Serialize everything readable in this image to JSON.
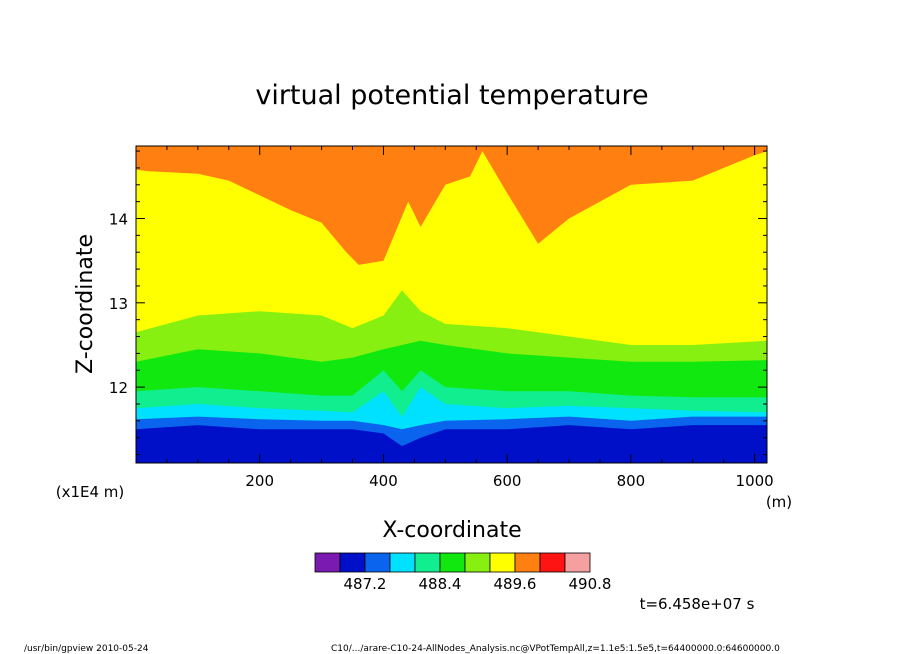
{
  "chart_data": {
    "type": "heatmap",
    "title": "virtual potential temperature",
    "xlabel": "X-coordinate",
    "ylabel": "Z-coordinate",
    "x_unit": "(m)",
    "y_unit": "(x1E4 m)",
    "xlim": [
      0,
      1020
    ],
    "ylim": [
      11.1,
      14.86
    ],
    "x_ticks": [
      200,
      400,
      600,
      800,
      1000
    ],
    "x_tick_labels": [
      "200",
      "400",
      "600",
      "800",
      "1000"
    ],
    "y_ticks": [
      12,
      13,
      14
    ],
    "y_tick_labels": [
      "12",
      "13",
      "14"
    ],
    "colorbar": {
      "colors": [
        "#7a1ab0",
        "#0010c8",
        "#0a64ee",
        "#00e0ff",
        "#10ee90",
        "#10e810",
        "#88f010",
        "#ffff00",
        "#ff8010",
        "#ff1414",
        "#f4a0a0"
      ],
      "labels": [
        "487.2",
        "488.4",
        "489.6",
        "490.8"
      ],
      "label_positions": [
        2,
        5,
        8,
        11
      ]
    },
    "time_label": "t=6.458e+07 s",
    "bands": [
      {
        "name": "blue",
        "color": "#0010c8",
        "x": [
          0,
          100,
          200,
          300,
          350,
          400,
          430,
          460,
          500,
          600,
          700,
          800,
          900,
          1020
        ],
        "top": [
          11.5,
          11.55,
          11.5,
          11.5,
          11.5,
          11.45,
          11.3,
          11.4,
          11.5,
          11.5,
          11.55,
          11.5,
          11.55,
          11.55
        ]
      },
      {
        "name": "dodgerblue",
        "color": "#0a64ee",
        "x": [
          0,
          100,
          200,
          300,
          350,
          400,
          430,
          460,
          500,
          600,
          700,
          800,
          900,
          1020
        ],
        "top": [
          11.62,
          11.65,
          11.62,
          11.6,
          11.6,
          11.55,
          11.5,
          11.55,
          11.6,
          11.62,
          11.65,
          11.6,
          11.65,
          11.65
        ]
      },
      {
        "name": "cyan",
        "color": "#00e0ff",
        "x": [
          0,
          100,
          200,
          300,
          350,
          400,
          430,
          460,
          500,
          600,
          700,
          800,
          900,
          1020
        ],
        "top": [
          11.75,
          11.8,
          11.75,
          11.72,
          11.7,
          11.95,
          11.65,
          12.0,
          11.8,
          11.75,
          11.78,
          11.75,
          11.72,
          11.7
        ]
      },
      {
        "name": "springgreen",
        "color": "#10ee90",
        "x": [
          0,
          100,
          200,
          300,
          350,
          400,
          430,
          460,
          500,
          600,
          700,
          800,
          900,
          1020
        ],
        "top": [
          11.95,
          12.0,
          11.95,
          11.9,
          11.9,
          12.2,
          11.95,
          12.2,
          12.0,
          11.95,
          11.95,
          11.9,
          11.88,
          11.88
        ]
      },
      {
        "name": "green",
        "color": "#10e810",
        "x": [
          0,
          100,
          200,
          300,
          350,
          400,
          430,
          460,
          500,
          600,
          700,
          800,
          900,
          1020
        ],
        "top": [
          12.3,
          12.45,
          12.4,
          12.3,
          12.35,
          12.45,
          12.5,
          12.55,
          12.5,
          12.4,
          12.35,
          12.3,
          12.3,
          12.32
        ]
      },
      {
        "name": "lime",
        "color": "#88f010",
        "x": [
          0,
          100,
          200,
          300,
          350,
          400,
          430,
          460,
          500,
          600,
          700,
          800,
          900,
          1020
        ],
        "top": [
          12.65,
          12.85,
          12.9,
          12.85,
          12.7,
          12.85,
          13.15,
          12.9,
          12.75,
          12.7,
          12.6,
          12.5,
          12.5,
          12.55
        ]
      },
      {
        "name": "yellow",
        "color": "#ffff00",
        "x": [
          0,
          20,
          100,
          150,
          250,
          300,
          340,
          360,
          400,
          440,
          460,
          500,
          540,
          560,
          600,
          650,
          700,
          800,
          900,
          1000,
          1020
        ],
        "top": [
          14.58,
          14.56,
          14.53,
          14.45,
          14.1,
          13.95,
          13.6,
          13.45,
          13.5,
          14.2,
          13.9,
          14.4,
          14.5,
          14.8,
          14.3,
          13.7,
          14.0,
          14.4,
          14.45,
          14.75,
          14.8
        ]
      },
      {
        "name": "orange",
        "color": "#ff8010",
        "x": [
          0,
          1020
        ],
        "top": [
          14.86,
          14.86
        ]
      }
    ]
  },
  "footer": {
    "program": "/usr/bin/gpview   2010-05-24",
    "source": "C10/.../arare-C10-24-AllNodes_Analysis.nc@VPotTempAll,z=1.1e5:1.5e5,t=64400000.0:64600000.0"
  }
}
